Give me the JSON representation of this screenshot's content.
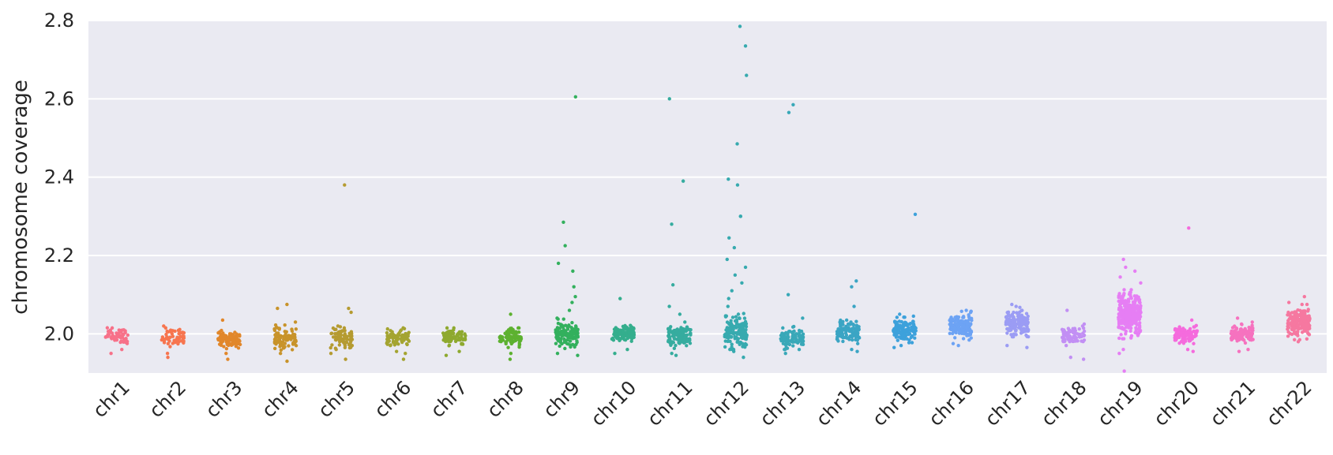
{
  "chart_data": {
    "type": "scatter",
    "subtype": "strip",
    "title": "",
    "xlabel": "",
    "ylabel": "chromosome coverage",
    "ylim": [
      1.9,
      2.8
    ],
    "yticks": [
      "2.0",
      "2.2",
      "2.4",
      "2.6",
      "2.8"
    ],
    "grid": true,
    "background": "#eaeaf2",
    "categories": [
      "chr1",
      "chr2",
      "chr3",
      "chr4",
      "chr5",
      "chr6",
      "chr7",
      "chr8",
      "chr9",
      "chr10",
      "chr11",
      "chr12",
      "chr13",
      "chr14",
      "chr15",
      "chr16",
      "chr17",
      "chr18",
      "chr19",
      "chr20",
      "chr21",
      "chr22"
    ],
    "colors": [
      "#f77189",
      "#f7754f",
      "#e1872b",
      "#c8932a",
      "#b59b31",
      "#a4a431",
      "#8ea92f",
      "#5db130",
      "#33b05d",
      "#34ae8d",
      "#36ac9f",
      "#37aaaf",
      "#39a8b8",
      "#3ba5c4",
      "#3da1db",
      "#6da3f4",
      "#9b9cf4",
      "#c28ff4",
      "#e67ef4",
      "#f56bdd",
      "#f672bf",
      "#f678a0"
    ],
    "series": [
      {
        "name": "chr1",
        "center": 1.995,
        "spread": 0.01,
        "n": 60,
        "outliers": [
          1.95,
          1.96,
          2.015,
          2.01
        ]
      },
      {
        "name": "chr2",
        "center": 1.99,
        "spread": 0.01,
        "n": 60,
        "outliers": [
          1.94,
          1.95,
          2.02,
          2.015
        ]
      },
      {
        "name": "chr3",
        "center": 1.985,
        "spread": 0.01,
        "n": 90,
        "outliers": [
          1.935,
          1.95,
          2.035,
          2.0
        ]
      },
      {
        "name": "chr4",
        "center": 1.99,
        "spread": 0.013,
        "n": 90,
        "outliers": [
          1.93,
          1.95,
          2.03,
          2.065,
          2.075
        ]
      },
      {
        "name": "chr5",
        "center": 1.99,
        "spread": 0.012,
        "n": 80,
        "outliers": [
          1.935,
          1.95,
          2.015,
          2.055,
          2.065,
          2.38
        ]
      },
      {
        "name": "chr6",
        "center": 1.99,
        "spread": 0.01,
        "n": 80,
        "outliers": [
          1.935,
          1.95,
          1.955,
          2.005
        ]
      },
      {
        "name": "chr7",
        "center": 1.99,
        "spread": 0.01,
        "n": 80,
        "outliers": [
          1.945,
          1.955,
          2.01,
          2.015
        ]
      },
      {
        "name": "chr8",
        "center": 1.99,
        "spread": 0.01,
        "n": 80,
        "outliers": [
          1.935,
          1.95,
          2.01,
          2.05
        ]
      },
      {
        "name": "chr9",
        "center": 2.0,
        "spread": 0.015,
        "n": 130,
        "outliers": [
          1.945,
          1.95,
          2.04,
          2.06,
          2.08,
          2.095,
          2.12,
          2.16,
          2.18,
          2.225,
          2.285,
          2.605
        ]
      },
      {
        "name": "chr10",
        "center": 2.0,
        "spread": 0.01,
        "n": 100,
        "outliers": [
          1.95,
          1.96,
          2.015,
          2.09
        ]
      },
      {
        "name": "chr11",
        "center": 1.995,
        "spread": 0.013,
        "n": 110,
        "outliers": [
          1.945,
          1.95,
          2.03,
          2.05,
          2.07,
          2.125,
          2.28,
          2.39,
          2.6
        ]
      },
      {
        "name": "chr12",
        "center": 2.005,
        "spread": 0.02,
        "n": 150,
        "outliers": [
          1.94,
          1.96,
          2.05,
          2.07,
          2.09,
          2.11,
          2.13,
          2.15,
          2.17,
          2.19,
          2.22,
          2.245,
          2.3,
          2.3,
          2.38,
          2.395,
          2.485,
          2.66,
          2.735,
          2.785
        ]
      },
      {
        "name": "chr13",
        "center": 1.99,
        "spread": 0.012,
        "n": 100,
        "outliers": [
          1.95,
          1.96,
          2.015,
          2.04,
          2.1,
          2.565,
          2.585
        ]
      },
      {
        "name": "chr14",
        "center": 2.005,
        "spread": 0.012,
        "n": 110,
        "outliers": [
          1.955,
          1.96,
          2.03,
          2.07,
          2.12,
          2.135
        ]
      },
      {
        "name": "chr15",
        "center": 2.01,
        "spread": 0.013,
        "n": 130,
        "outliers": [
          1.965,
          1.97,
          2.045,
          2.05,
          2.305
        ]
      },
      {
        "name": "chr16",
        "center": 2.02,
        "spread": 0.015,
        "n": 150,
        "outliers": [
          1.97,
          1.975,
          2.055,
          2.06
        ]
      },
      {
        "name": "chr17",
        "center": 2.03,
        "spread": 0.015,
        "n": 160,
        "outliers": [
          1.965,
          1.97,
          2.07,
          2.075
        ]
      },
      {
        "name": "chr18",
        "center": 1.995,
        "spread": 0.012,
        "n": 80,
        "outliers": [
          1.935,
          1.94,
          2.02,
          2.06
        ]
      },
      {
        "name": "chr19",
        "center": 2.05,
        "spread": 0.025,
        "n": 320,
        "outliers": [
          1.905,
          1.95,
          1.96,
          2.13,
          2.145,
          2.16,
          2.17,
          2.19
        ]
      },
      {
        "name": "chr20",
        "center": 2.0,
        "spread": 0.01,
        "n": 110,
        "outliers": [
          1.955,
          1.96,
          2.035,
          2.27
        ]
      },
      {
        "name": "chr21",
        "center": 2.0,
        "spread": 0.01,
        "n": 110,
        "outliers": [
          1.955,
          1.96,
          2.03,
          2.04
        ]
      },
      {
        "name": "chr22",
        "center": 2.03,
        "spread": 0.018,
        "n": 190,
        "outliers": [
          1.98,
          1.985,
          2.08,
          2.095
        ]
      }
    ]
  }
}
